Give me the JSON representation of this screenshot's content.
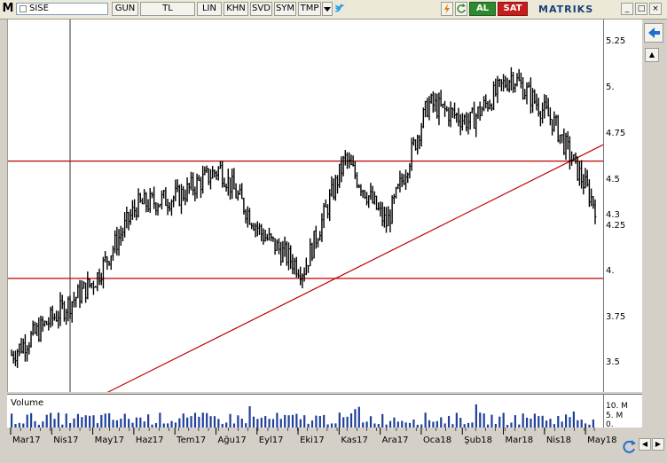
{
  "toolbar": {
    "logo": "M",
    "symbol": "SISE",
    "buttons": [
      "GUN",
      "TL",
      "LIN",
      "KHN",
      "SVD",
      "SYM",
      "TMP"
    ],
    "buy_label": "AL",
    "sell_label": "SAT",
    "brand": "MATRIKS",
    "colors": {
      "buy": "#2f8a2f",
      "sell": "#c61d1d",
      "brand": "#1a3e7a"
    }
  },
  "price_axis": {
    "ticks": [
      "5.25",
      "5.",
      "4.75",
      "4.5",
      "4.3",
      "4.25",
      "4.",
      "3.75",
      "3.5"
    ]
  },
  "volume": {
    "title": "Volume",
    "ticks": [
      "10. M",
      "5. M",
      "0."
    ]
  },
  "time_axis": {
    "labels": [
      "Mar17",
      "Nis17",
      "May17",
      "Haz17",
      "Tem17",
      "Ağu17",
      "Eyl17",
      "Eki17",
      "Kas17",
      "Ara17",
      "Oca18",
      "Şub18",
      "Mar18",
      "Nis18",
      "May18"
    ]
  },
  "chart_data": {
    "type": "line",
    "symbol": "SISE",
    "x": [
      "Mar17",
      "Nis17",
      "May17",
      "Haz17",
      "Tem17",
      "Ağu17",
      "Eyl17",
      "Eki17",
      "Kas17",
      "Ara17",
      "Oca18",
      "Şub18",
      "Mar18",
      "Nis18",
      "May18"
    ],
    "series": [
      {
        "values": [
          3.55,
          3.75,
          3.95,
          4.35,
          4.4,
          4.55,
          4.2,
          4.0,
          4.6,
          4.25,
          4.9,
          4.8,
          5.05,
          4.8,
          4.35
        ]
      }
    ],
    "horizontal_lines": [
      4.59,
      3.96
    ],
    "trendline": [
      [
        3.3,
        "Mar17"
      ],
      [
        4.68,
        "May18"
      ]
    ],
    "ylim": [
      3.35,
      5.35
    ],
    "colors": {
      "price": "#000000",
      "lines": "#c00000",
      "volume": "#1f3f9a"
    }
  }
}
